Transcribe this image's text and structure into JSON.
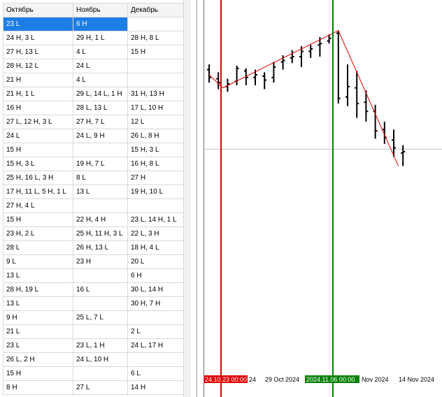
{
  "table": {
    "headers": [
      "Октябрь",
      "Ноябрь",
      "Декабрь"
    ],
    "selected_row": 0,
    "rows": [
      [
        "23 L",
        "6 H",
        ""
      ],
      [
        "24 H, 3 L",
        "29 H, 1 L",
        "28 H, 8 L"
      ],
      [
        "27 H, 13 L",
        "4 L",
        "15 H"
      ],
      [
        "28 H, 12 L",
        "24 L",
        ""
      ],
      [
        "21 H",
        "4 L",
        ""
      ],
      [
        "21 H, 1 L",
        "29 L, 14 L, 1 H",
        "31 H, 13 H"
      ],
      [
        "16 H",
        "28 L, 13 L",
        "17 L, 10 H"
      ],
      [
        "27 L, 12 H, 3 L",
        "27 H, 7 L",
        "12 L"
      ],
      [
        "24 L",
        "24 L, 9 H",
        "26 L, 8 H"
      ],
      [
        "15 H",
        "",
        "15 H, 3 L"
      ],
      [
        "15 H, 3 L",
        "19 H, 7 L",
        "16 H, 8 L"
      ],
      [
        "25 H, 16 L, 3 H",
        "8 L",
        "27 H"
      ],
      [
        "17 H, 11 L, 5 H, 1 L",
        "13 L",
        "19 H, 10 L"
      ],
      [
        "27 H, 4 L",
        "",
        ""
      ],
      [
        "15 H",
        "22 H, 4 H",
        "23 L, 14 H, 1 L"
      ],
      [
        "23 H, 2 L",
        "25 H, 11 H, 3 L",
        "22 L, 3 H"
      ],
      [
        "28 L",
        "26 H, 13 L",
        "18 H, 4 L"
      ],
      [
        "9 L",
        "23 H",
        "20 L"
      ],
      [
        "13 L",
        "",
        "6 H"
      ],
      [
        "28 H, 19 L",
        "16 L",
        "30 L, 14 H"
      ],
      [
        "13 L",
        "",
        "30 H, 7 H"
      ],
      [
        "9 H",
        "25 L, 7 L",
        ""
      ],
      [
        "21 L",
        "",
        "2 L"
      ],
      [
        "23 L",
        "23 L, 1 H",
        "24 L, 17 H"
      ],
      [
        "26 L, 2 H",
        "24 L, 10 H",
        ""
      ],
      [
        "15 H",
        "",
        "6 L"
      ],
      [
        "8 H",
        "27 L",
        "14 H"
      ]
    ]
  },
  "chart": {
    "colors": {
      "red_marker": "#e00000",
      "green_marker": "#008000",
      "zigzag": "#e00000",
      "bars": "#000000",
      "grid": "#c0c0c0"
    },
    "bars_ohlc": [
      {
        "o": 118,
        "h": 122,
        "l": 108,
        "c": 112
      },
      {
        "o": 111,
        "h": 116,
        "l": 103,
        "c": 108
      },
      {
        "o": 105,
        "h": 111,
        "l": 101,
        "c": 107
      },
      {
        "o": 109,
        "h": 121,
        "l": 106,
        "c": 119
      },
      {
        "o": 117,
        "h": 119,
        "l": 106,
        "c": 112
      },
      {
        "o": 112,
        "h": 118,
        "l": 106,
        "c": 114
      },
      {
        "o": 113,
        "h": 116,
        "l": 103,
        "c": 110
      },
      {
        "o": 112,
        "h": 124,
        "l": 108,
        "c": 120
      },
      {
        "o": 124,
        "h": 129,
        "l": 118,
        "c": 125
      },
      {
        "o": 127,
        "h": 133,
        "l": 123,
        "c": 128
      },
      {
        "o": 128,
        "h": 136,
        "l": 120,
        "c": 132
      },
      {
        "o": 132,
        "h": 137,
        "l": 127,
        "c": 134
      },
      {
        "o": 137,
        "h": 143,
        "l": 128,
        "c": 138
      },
      {
        "o": 140,
        "h": 145,
        "l": 138,
        "c": 142
      },
      {
        "o": 146,
        "h": 148,
        "l": 92,
        "c": 96
      },
      {
        "o": 97,
        "h": 122,
        "l": 90,
        "c": 105
      },
      {
        "o": 104,
        "h": 117,
        "l": 81,
        "c": 92
      },
      {
        "o": 93,
        "h": 102,
        "l": 78,
        "c": 86
      },
      {
        "o": 86,
        "h": 91,
        "l": 65,
        "c": 71
      },
      {
        "o": 72,
        "h": 78,
        "l": 61,
        "c": 66
      },
      {
        "o": 64,
        "h": 72,
        "l": 51,
        "c": 58
      },
      {
        "o": 54,
        "h": 60,
        "l": 44,
        "c": 55
      }
    ],
    "zigzag": [
      [
        0,
        114
      ],
      [
        1.5,
        104
      ],
      [
        14,
        148
      ],
      [
        20.5,
        44
      ]
    ],
    "horizontal_level": 57,
    "red_marker_index": 1.5,
    "green_marker_index": 12.5,
    "time_labels": {
      "red_tag": "24.10.23 00:00",
      "after_red": "24",
      "oct29": "29 Oct 2024",
      "green_tag": "2024.11.06 00:00",
      "nov": "Nov 2024",
      "nov14": "14 Nov 2024"
    }
  }
}
